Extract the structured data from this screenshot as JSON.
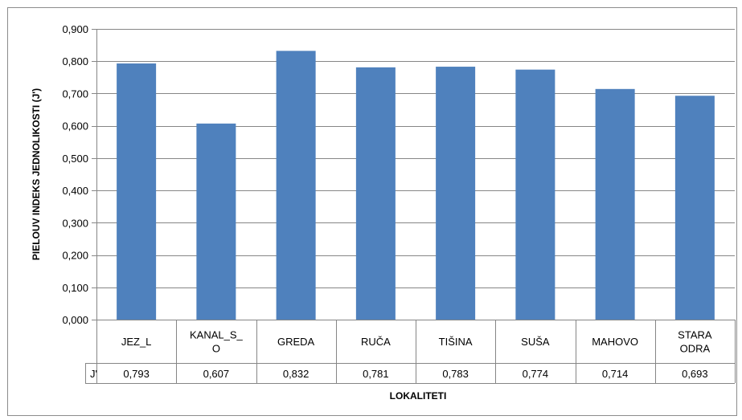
{
  "chart_data": {
    "type": "bar",
    "categories": [
      [
        "JEZ_L"
      ],
      [
        "KANAL_S_",
        "O"
      ],
      [
        "GREDA"
      ],
      [
        "RUČA"
      ],
      [
        "TIŠINA"
      ],
      [
        "SUŠA"
      ],
      [
        "MAHOVO"
      ],
      [
        "STARA",
        "ODRA"
      ]
    ],
    "series": [
      {
        "name": "J'",
        "values": [
          0.793,
          0.607,
          0.832,
          0.781,
          0.783,
          0.774,
          0.714,
          0.693
        ],
        "color": "#4f81bd"
      }
    ],
    "table_values": [
      "0,793",
      "0,607",
      "0,832",
      "0,781",
      "0,783",
      "0,774",
      "0,714",
      "0,693"
    ],
    "ylim": [
      0,
      0.9
    ],
    "yticks": [
      0,
      0.1,
      0.2,
      0.3,
      0.4,
      0.5,
      0.6,
      0.7,
      0.8,
      0.9
    ],
    "ytick_labels": [
      "0,000",
      "0,100",
      "0,200",
      "0,300",
      "0,400",
      "0,500",
      "0,600",
      "0,700",
      "0,800",
      "0,900"
    ],
    "xlabel": "LOKALITETI",
    "ylabel": "PIELOUV INDEKS JEDNOLIKOSTI (J')",
    "grid": "horizontal",
    "legend": "data-table"
  }
}
